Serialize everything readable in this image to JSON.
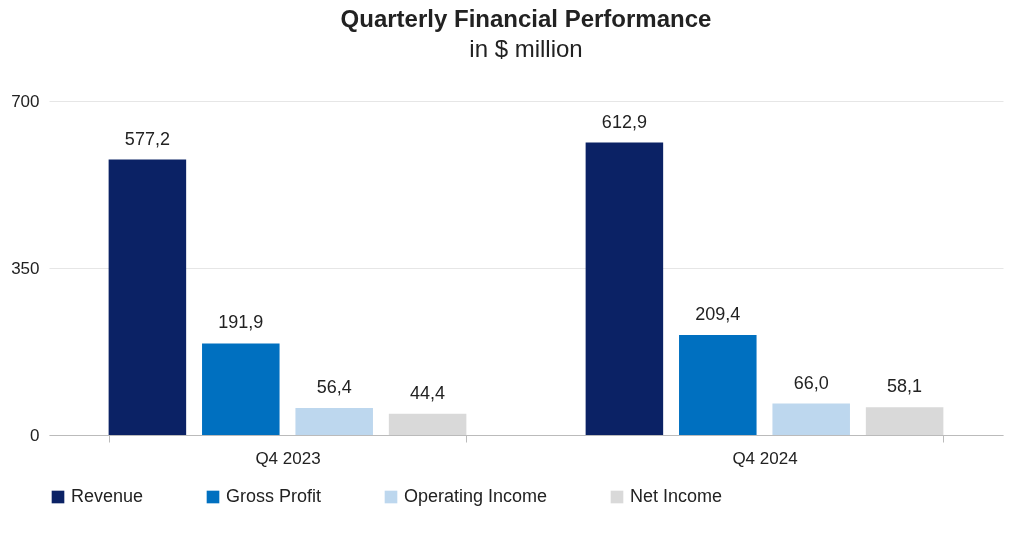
{
  "chart_data": {
    "type": "bar",
    "title": "Quarterly Financial Performance",
    "subtitle": "in $ million",
    "categories": [
      "Q4 2023",
      "Q4 2024"
    ],
    "series": [
      {
        "name": "Revenue",
        "color": "#0b2265",
        "values": [
          577.2,
          612.9
        ],
        "value_labels": [
          "577,2",
          "612,9"
        ]
      },
      {
        "name": "Gross Profit",
        "color": "#0070c0",
        "values": [
          191.9,
          209.4
        ],
        "value_labels": [
          "191,9",
          "209,4"
        ]
      },
      {
        "name": "Operating Income",
        "color": "#bdd7ee",
        "values": [
          56.4,
          66.0
        ],
        "value_labels": [
          "56,4",
          "66,0"
        ]
      },
      {
        "name": "Net Income",
        "color": "#d9d9d9",
        "values": [
          44.4,
          58.1
        ],
        "value_labels": [
          "44,4",
          "58,1"
        ]
      }
    ],
    "ylim": [
      0,
      700
    ],
    "yticks": [
      0,
      350,
      700
    ],
    "grid": "y",
    "legend": "bottom"
  }
}
